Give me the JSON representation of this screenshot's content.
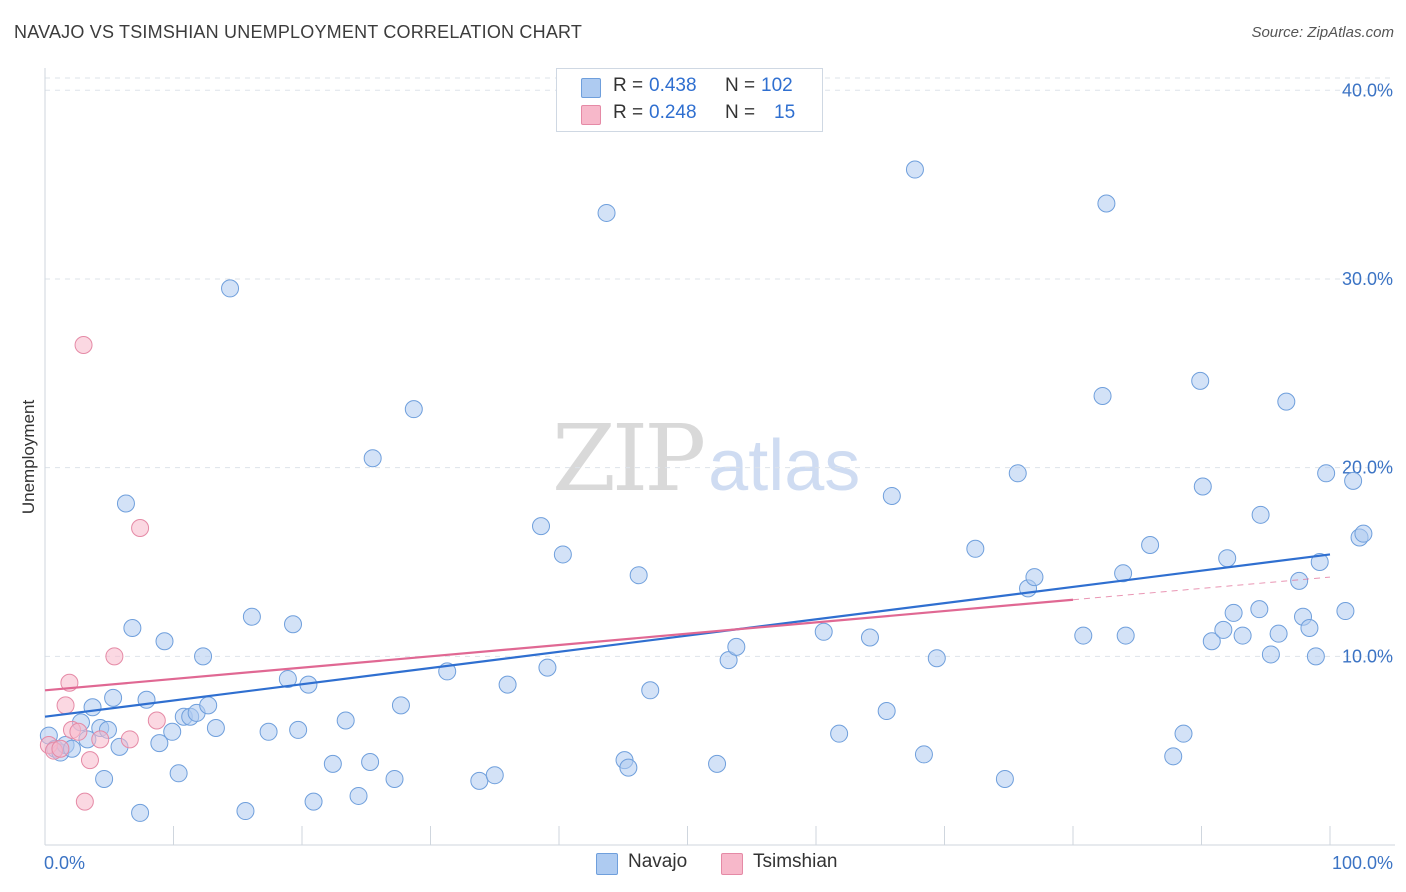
{
  "header": {
    "title": "NAVAJO VS TSIMSHIAN UNEMPLOYMENT CORRELATION CHART",
    "source": "Source: ZipAtlas.com"
  },
  "watermark": {
    "zip": "ZIP",
    "atlas": "atlas"
  },
  "legend": {
    "rows": [
      {
        "r_label": "R = ",
        "r_value": "0.438",
        "n_label": "N = ",
        "n_value": "102",
        "color": "#aecbf1"
      },
      {
        "r_label": "R = ",
        "r_value": "0.248",
        "n_label": "N = ",
        "n_value": "15",
        "color": "#f7b8ca"
      }
    ]
  },
  "bottom_legend": {
    "navajo": "Navajo",
    "tsimshian": "Tsimshian"
  },
  "colors": {
    "navajo_fill": "#aecbf1",
    "navajo_stroke": "#6f9fdc",
    "navajo_line": "#2f6fd0",
    "tsimshian_fill": "#f7b8ca",
    "tsimshian_stroke": "#e58aa6",
    "tsimshian_line": "#e06893",
    "grid": "#dde3ea",
    "tick_text": "#3b73c4"
  },
  "chart_data": {
    "type": "scatter",
    "title": "NAVAJO VS TSIMSHIAN UNEMPLOYMENT CORRELATION CHART",
    "xlabel": "",
    "ylabel": "Unemployment",
    "xlim": [
      0,
      100
    ],
    "ylim": [
      0,
      41.5
    ],
    "x_tick_labels": [
      "0.0%",
      "100.0%"
    ],
    "y_ticks": [
      10,
      20,
      30,
      40
    ],
    "y_tick_labels": [
      "10.0%",
      "20.0%",
      "30.0%",
      "40.0%"
    ],
    "grid": true,
    "legend_position": "top-center",
    "series": [
      {
        "name": "Navajo",
        "points": [
          [
            0.3,
            5.8
          ],
          [
            0.8,
            5.1
          ],
          [
            1.2,
            4.9
          ],
          [
            1.6,
            5.3
          ],
          [
            2.1,
            5.1
          ],
          [
            2.8,
            6.5
          ],
          [
            3.3,
            5.6
          ],
          [
            3.7,
            7.3
          ],
          [
            4.3,
            6.2
          ],
          [
            4.6,
            3.5
          ],
          [
            5.3,
            7.8
          ],
          [
            5.8,
            5.2
          ],
          [
            6.3,
            18.1
          ],
          [
            6.8,
            11.5
          ],
          [
            7.4,
            1.7
          ],
          [
            7.9,
            7.7
          ],
          [
            8.9,
            5.4
          ],
          [
            9.3,
            10.8
          ],
          [
            9.9,
            6.0
          ],
          [
            10.4,
            3.8
          ],
          [
            10.8,
            6.8
          ],
          [
            11.3,
            6.8
          ],
          [
            11.8,
            7.0
          ],
          [
            12.3,
            10.0
          ],
          [
            12.7,
            7.4
          ],
          [
            13.3,
            6.2
          ],
          [
            14.4,
            29.5
          ],
          [
            15.6,
            1.8
          ],
          [
            16.1,
            12.1
          ],
          [
            17.4,
            6.0
          ],
          [
            18.9,
            8.8
          ],
          [
            19.3,
            11.7
          ],
          [
            19.7,
            6.1
          ],
          [
            20.5,
            8.5
          ],
          [
            20.9,
            2.3
          ],
          [
            22.4,
            4.3
          ],
          [
            23.4,
            6.6
          ],
          [
            24.4,
            2.6
          ],
          [
            25.3,
            4.4
          ],
          [
            25.5,
            20.5
          ],
          [
            27.2,
            3.5
          ],
          [
            27.7,
            7.4
          ],
          [
            28.7,
            23.1
          ],
          [
            31.3,
            9.2
          ],
          [
            33.8,
            3.4
          ],
          [
            35.0,
            3.7
          ],
          [
            36.0,
            8.5
          ],
          [
            38.6,
            16.9
          ],
          [
            39.1,
            9.4
          ],
          [
            40.3,
            15.4
          ],
          [
            43.7,
            33.5
          ],
          [
            45.1,
            4.5
          ],
          [
            45.4,
            4.1
          ],
          [
            46.2,
            14.3
          ],
          [
            47.1,
            8.2
          ],
          [
            52.3,
            4.3
          ],
          [
            53.2,
            9.8
          ],
          [
            53.8,
            10.5
          ],
          [
            60.6,
            11.3
          ],
          [
            61.8,
            5.9
          ],
          [
            64.2,
            11.0
          ],
          [
            65.5,
            7.1
          ],
          [
            65.9,
            18.5
          ],
          [
            67.7,
            35.8
          ],
          [
            68.4,
            4.8
          ],
          [
            69.4,
            9.9
          ],
          [
            72.4,
            15.7
          ],
          [
            74.7,
            3.5
          ],
          [
            75.7,
            19.7
          ],
          [
            76.5,
            13.6
          ],
          [
            77.0,
            14.2
          ],
          [
            80.8,
            11.1
          ],
          [
            82.3,
            23.8
          ],
          [
            82.6,
            34.0
          ],
          [
            83.9,
            14.4
          ],
          [
            84.1,
            11.1
          ],
          [
            86.0,
            15.9
          ],
          [
            87.8,
            4.7
          ],
          [
            88.6,
            5.9
          ],
          [
            89.9,
            24.6
          ],
          [
            90.1,
            19.0
          ],
          [
            90.8,
            10.8
          ],
          [
            91.7,
            11.4
          ],
          [
            92.0,
            15.2
          ],
          [
            92.5,
            12.3
          ],
          [
            93.2,
            11.1
          ],
          [
            94.5,
            12.5
          ],
          [
            94.6,
            17.5
          ],
          [
            95.4,
            10.1
          ],
          [
            96.0,
            11.2
          ],
          [
            96.6,
            23.5
          ],
          [
            97.6,
            14.0
          ],
          [
            97.9,
            12.1
          ],
          [
            98.4,
            11.5
          ],
          [
            98.9,
            10.0
          ],
          [
            99.2,
            15.0
          ],
          [
            99.7,
            19.7
          ],
          [
            101.2,
            12.4
          ],
          [
            101.8,
            19.3
          ],
          [
            102.3,
            16.3
          ],
          [
            102.6,
            16.5
          ],
          [
            4.9,
            6.1
          ]
        ],
        "trend": {
          "x": [
            0,
            100
          ],
          "y": [
            6.8,
            15.4
          ]
        }
      },
      {
        "name": "Tsimshian",
        "points": [
          [
            0.3,
            5.3
          ],
          [
            0.7,
            5.0
          ],
          [
            1.2,
            5.1
          ],
          [
            1.6,
            7.4
          ],
          [
            1.9,
            8.6
          ],
          [
            2.1,
            6.1
          ],
          [
            2.6,
            6.0
          ],
          [
            3.0,
            26.5
          ],
          [
            3.5,
            4.5
          ],
          [
            4.3,
            5.6
          ],
          [
            5.4,
            10.0
          ],
          [
            6.6,
            5.6
          ],
          [
            7.4,
            16.8
          ],
          [
            8.7,
            6.6
          ],
          [
            3.1,
            2.3
          ]
        ],
        "trend": {
          "x": [
            0,
            100
          ],
          "y": [
            8.2,
            14.2
          ]
        }
      }
    ]
  }
}
